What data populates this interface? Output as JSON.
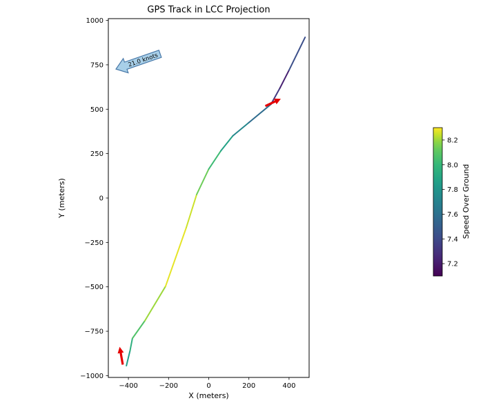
{
  "chart_data": {
    "type": "line",
    "title": "GPS Track in LCC Projection",
    "xlabel": "X (meters)",
    "ylabel": "Y (meters)",
    "xlim": [
      -500,
      500
    ],
    "ylim": [
      -1010,
      1010
    ],
    "xticks": [
      -400,
      -200,
      0,
      200,
      400
    ],
    "yticks": [
      -1000,
      -750,
      -500,
      -250,
      0,
      250,
      500,
      750,
      1000
    ],
    "grid": false,
    "colorbar": {
      "label": "Speed Over Ground",
      "ticks": [
        7.2,
        7.4,
        7.6,
        7.8,
        8.0,
        8.2
      ],
      "vmin": 7.1,
      "vmax": 8.3,
      "colormap": "viridis"
    },
    "track": {
      "x": [
        -410,
        -392,
        -380,
        -318,
        -215,
        -112,
        -60,
        0,
        60,
        120,
        200,
        310,
        355,
        400,
        480
      ],
      "y": [
        -944,
        -860,
        -790,
        -691,
        -497,
        -167,
        20,
        163,
        265,
        350,
        425,
        528,
        620,
        720,
        905
      ],
      "speed": [
        7.8,
        7.9,
        8.0,
        8.15,
        8.25,
        8.3,
        8.2,
        8.1,
        7.95,
        7.8,
        7.65,
        7.5,
        7.15,
        7.3,
        7.55
      ]
    },
    "annotation": {
      "text": "21.0 knots",
      "tip": [
        -462,
        726
      ],
      "tail": [
        -242,
        812
      ],
      "fill": "#a8cfe8",
      "edge": "#4878a8"
    },
    "arrows": [
      {
        "x": -428,
        "y": -938,
        "angle_deg": 100,
        "length_m": 90,
        "color": "#e50000"
      },
      {
        "x": 282,
        "y": 518,
        "angle_deg": 25,
        "length_m": 85,
        "color": "#e50000"
      }
    ]
  }
}
